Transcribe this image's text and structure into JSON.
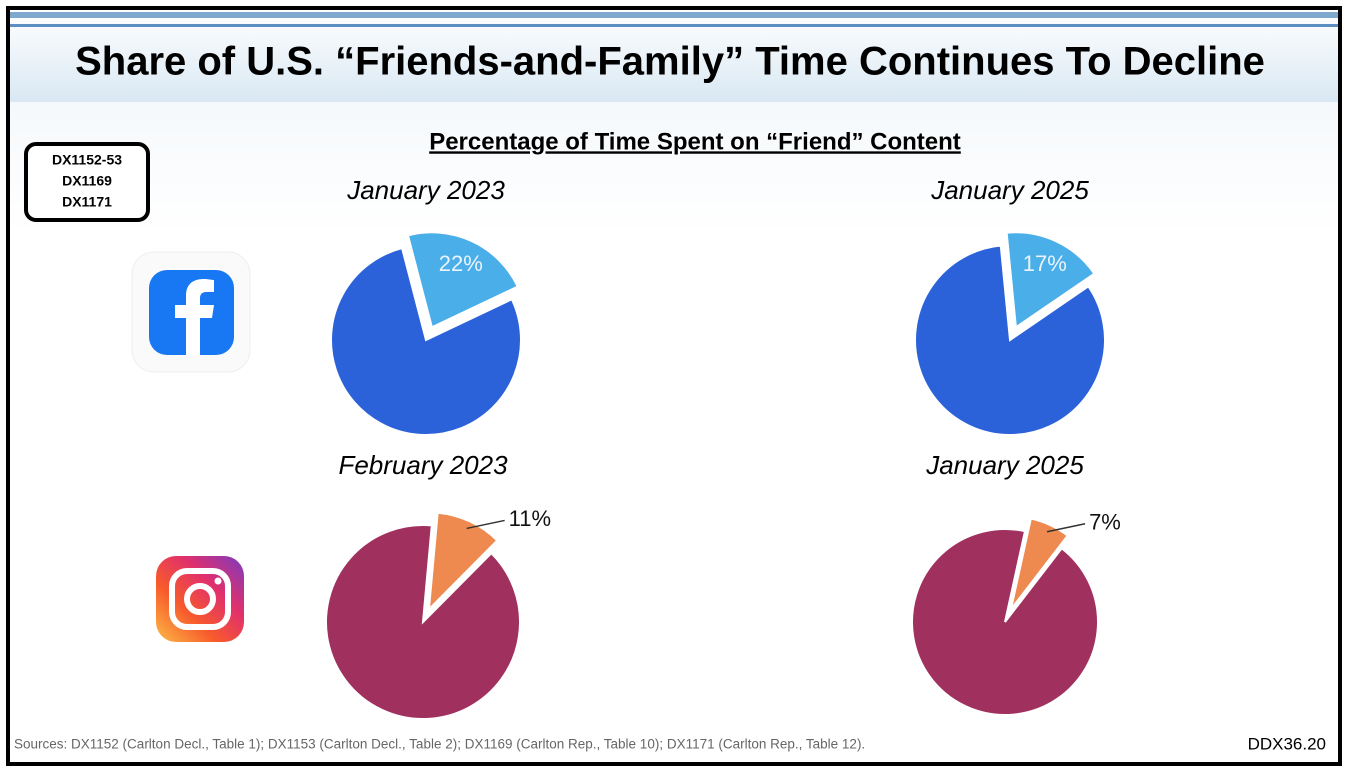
{
  "title": "Share of U.S. “Friends-and-Family” Time Continues To Decline",
  "subtitle": "Percentage of Time Spent on “Friend” Content",
  "exhibits": [
    "DX1152-53",
    "DX1169",
    "DX1171"
  ],
  "sources": "Sources:  DX1152 (Carlton Decl., Table 1); DX1153 (Carlton Decl., Table 2); DX1169 (Carlton Rep., Table 10); DX1171 (Carlton Rep., Table 12).",
  "slide_id": "DDX36.20",
  "chart_data": [
    {
      "type": "pie",
      "title": "January 2023",
      "values": [
        22,
        78
      ],
      "value_labels": [
        "22%",
        null
      ],
      "colors": [
        "#4aaee8",
        "#2b62d9"
      ],
      "label_position": "inside"
    },
    {
      "type": "pie",
      "title": "January 2025",
      "values": [
        17,
        83
      ],
      "value_labels": [
        "17%",
        null
      ],
      "colors": [
        "#4aaee8",
        "#2b62d9"
      ],
      "label_position": "inside"
    },
    {
      "type": "pie",
      "title": "February 2023",
      "values": [
        11,
        89
      ],
      "value_labels": [
        "11%",
        null
      ],
      "colors": [
        "#ee8a50",
        "#a0305e"
      ],
      "label_position": "outside"
    },
    {
      "type": "pie",
      "title": "January 2025",
      "values": [
        7,
        93
      ],
      "value_labels": [
        "7%",
        null
      ],
      "colors": [
        "#ee8a50",
        "#a0305e"
      ],
      "label_position": "outside"
    }
  ]
}
